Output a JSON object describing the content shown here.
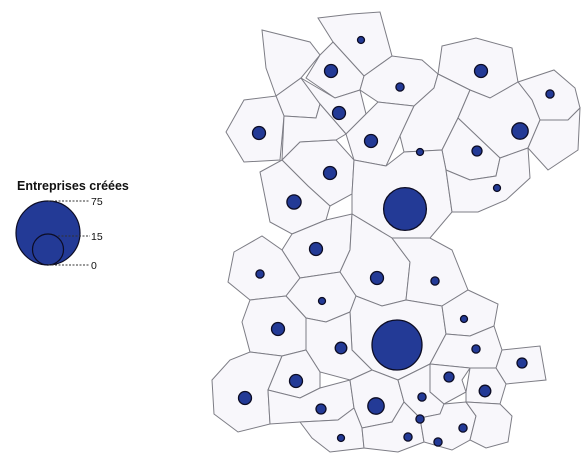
{
  "legend": {
    "title": "Entreprises créées",
    "ticks": [
      {
        "label": "75",
        "value": 75
      },
      {
        "label": "15",
        "value": 15
      },
      {
        "label": "0",
        "value": 0
      }
    ]
  },
  "colors": {
    "bubble": "#233a96",
    "bubble_stroke": "#0c0c24",
    "cell_fill": "#f8f7fb",
    "cell_stroke": "#7d7d85"
  },
  "scale": {
    "max_value": 75
  },
  "zones": [
    {
      "id": "z01",
      "value": 1
    },
    {
      "id": "z02",
      "value": 5
    },
    {
      "id": "z03",
      "value": 2
    },
    {
      "id": "z04",
      "value": 5
    },
    {
      "id": "z05",
      "value": 2
    },
    {
      "id": "z06",
      "value": 5
    },
    {
      "id": "z07",
      "value": 5
    },
    {
      "id": "z08",
      "value": 5
    },
    {
      "id": "z09",
      "value": 1
    },
    {
      "id": "z10",
      "value": 3
    },
    {
      "id": "z11",
      "value": 8
    },
    {
      "id": "z12",
      "value": 5
    },
    {
      "id": "z13",
      "value": 1
    },
    {
      "id": "z14",
      "value": 6
    },
    {
      "id": "z15",
      "value": 55
    },
    {
      "id": "z16",
      "value": 5
    },
    {
      "id": "z17",
      "value": 2
    },
    {
      "id": "z18",
      "value": 5
    },
    {
      "id": "z19",
      "value": 2
    },
    {
      "id": "z20",
      "value": 1
    },
    {
      "id": "z21",
      "value": 5
    },
    {
      "id": "z22",
      "value": 1
    },
    {
      "id": "z23",
      "value": 4
    },
    {
      "id": "z24",
      "value": 75
    },
    {
      "id": "z25",
      "value": 2
    },
    {
      "id": "z26",
      "value": 3
    },
    {
      "id": "z27",
      "value": 5
    },
    {
      "id": "z28",
      "value": 5
    },
    {
      "id": "z29",
      "value": 3
    },
    {
      "id": "z30",
      "value": 4
    },
    {
      "id": "z31",
      "value": 2
    },
    {
      "id": "z32",
      "value": 3
    },
    {
      "id": "z33",
      "value": 8
    },
    {
      "id": "z34",
      "value": 2
    },
    {
      "id": "z35",
      "value": 2
    },
    {
      "id": "z36",
      "value": 1
    },
    {
      "id": "z37",
      "value": 2
    },
    {
      "id": "z38",
      "value": 2
    }
  ]
}
